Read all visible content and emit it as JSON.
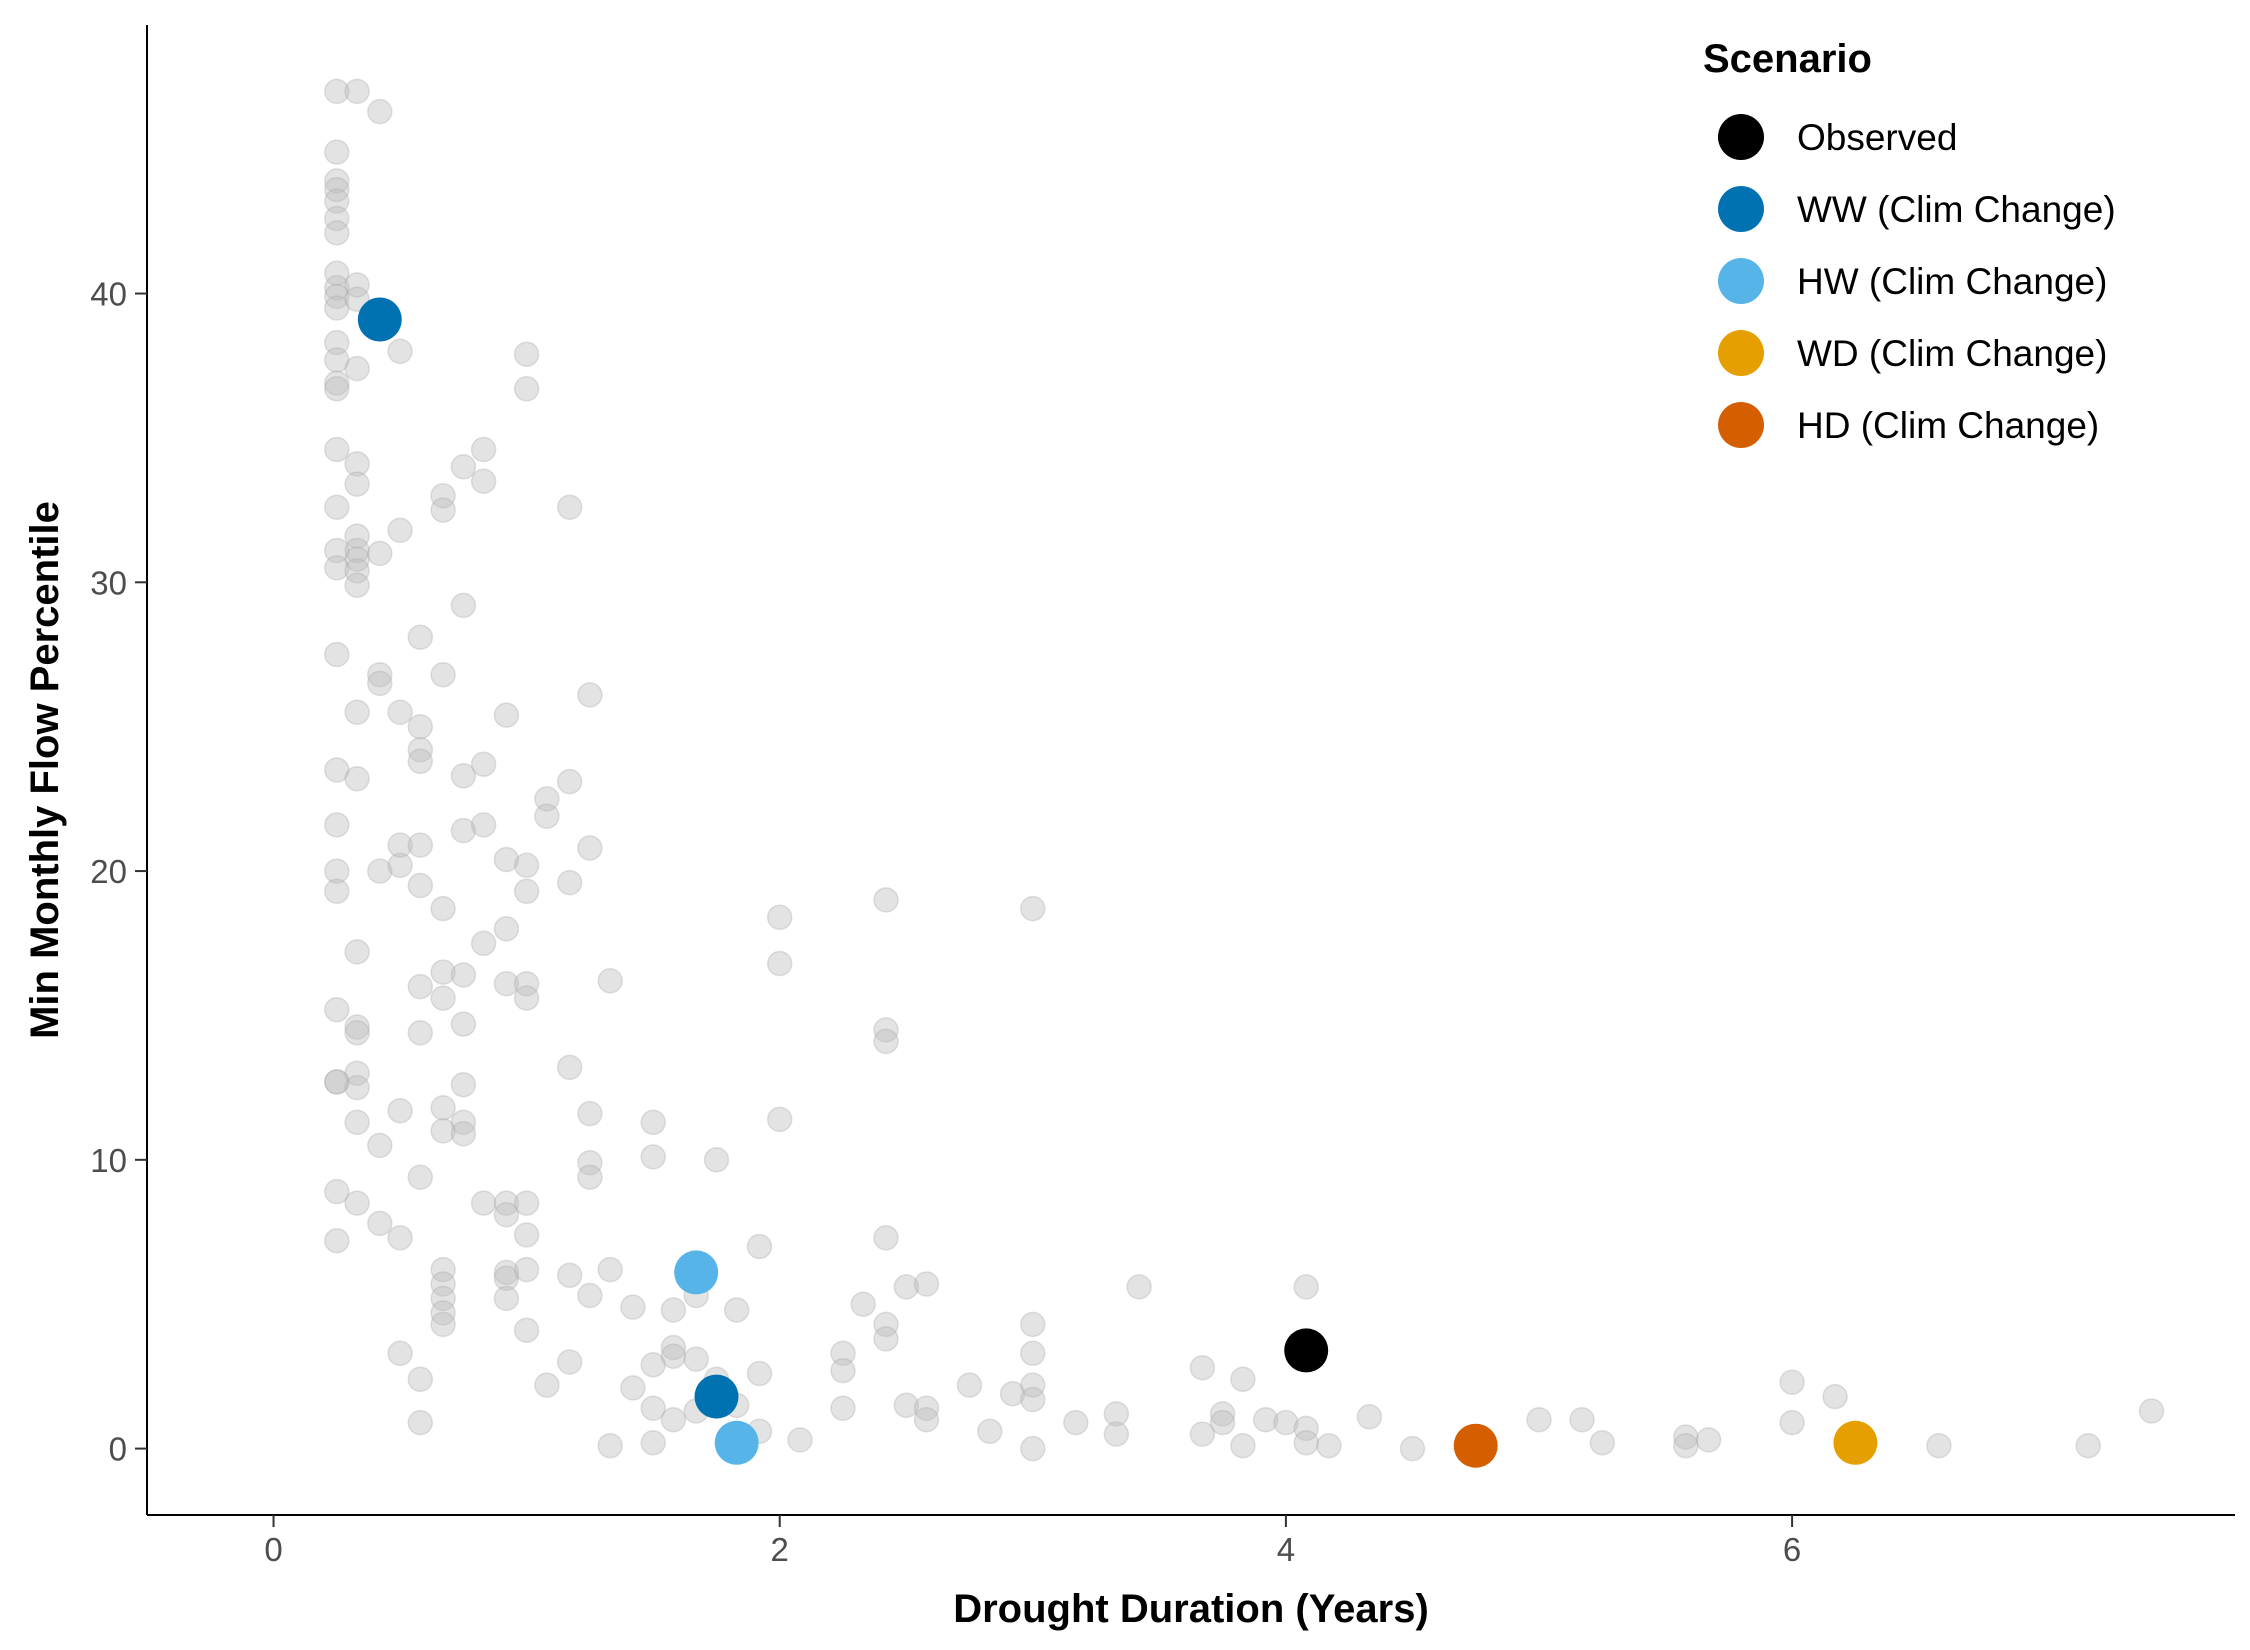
{
  "chart_data": {
    "type": "scatter",
    "xlabel": "Drought Duration (Years)",
    "ylabel": "Min Monthly Flow Percentile",
    "xlim": [
      -0.5,
      7.75
    ],
    "ylim": [
      -2.3,
      49.3
    ],
    "x_ticks": [
      0,
      2,
      4,
      6
    ],
    "y_ticks": [
      0,
      10,
      20,
      30,
      40
    ],
    "grid": false,
    "legend": {
      "title": "Scenario",
      "placement": "top-right",
      "entries": [
        {
          "label": "Observed",
          "color": "#000000"
        },
        {
          "label": "WW (Clim Change)",
          "color": "#0072B2"
        },
        {
          "label": "HW (Clim Change)",
          "color": "#56B4E9"
        },
        {
          "label": "WD (Clim Change)",
          "color": "#E69F00"
        },
        {
          "label": "HD (Clim Change)",
          "color": "#D55E00"
        }
      ]
    },
    "background_color": "#bdbdbd",
    "background_points": [
      [
        0.25,
        47.0
      ],
      [
        0.33,
        47.0
      ],
      [
        0.42,
        46.3
      ],
      [
        0.25,
        44.9
      ],
      [
        0.25,
        43.9
      ],
      [
        0.25,
        43.6
      ],
      [
        0.25,
        43.2
      ],
      [
        0.25,
        42.6
      ],
      [
        0.25,
        42.1
      ],
      [
        0.25,
        40.7
      ],
      [
        0.25,
        40.2
      ],
      [
        0.25,
        39.9
      ],
      [
        0.25,
        39.5
      ],
      [
        0.33,
        40.3
      ],
      [
        0.33,
        39.8
      ],
      [
        0.25,
        38.3
      ],
      [
        0.25,
        37.7
      ],
      [
        0.25,
        36.9
      ],
      [
        0.25,
        36.7
      ],
      [
        0.33,
        37.4
      ],
      [
        0.5,
        38.0
      ],
      [
        0.25,
        34.6
      ],
      [
        0.33,
        34.1
      ],
      [
        0.33,
        33.4
      ],
      [
        0.25,
        32.6
      ],
      [
        0.33,
        31.6
      ],
      [
        0.33,
        31.1
      ],
      [
        0.33,
        30.8
      ],
      [
        0.42,
        31.0
      ],
      [
        0.25,
        31.1
      ],
      [
        0.25,
        30.5
      ],
      [
        0.33,
        30.4
      ],
      [
        0.33,
        29.9
      ],
      [
        0.5,
        31.8
      ],
      [
        0.25,
        27.5
      ],
      [
        0.42,
        26.8
      ],
      [
        0.42,
        26.5
      ],
      [
        0.33,
        25.5
      ],
      [
        0.5,
        25.5
      ],
      [
        0.25,
        23.5
      ],
      [
        0.33,
        23.2
      ],
      [
        0.25,
        21.6
      ],
      [
        0.25,
        20.0
      ],
      [
        0.25,
        19.3
      ],
      [
        0.42,
        20.0
      ],
      [
        0.5,
        20.2
      ],
      [
        0.5,
        20.9
      ],
      [
        0.33,
        17.2
      ],
      [
        0.25,
        15.2
      ],
      [
        0.33,
        14.6
      ],
      [
        0.33,
        14.4
      ],
      [
        0.25,
        12.7
      ],
      [
        0.25,
        12.7
      ],
      [
        0.33,
        13.0
      ],
      [
        0.33,
        12.5
      ],
      [
        0.33,
        11.3
      ],
      [
        0.42,
        10.5
      ],
      [
        0.5,
        11.7
      ],
      [
        0.25,
        8.9
      ],
      [
        0.33,
        8.5
      ],
      [
        0.42,
        7.8
      ],
      [
        0.25,
        7.2
      ],
      [
        0.5,
        7.3
      ],
      [
        0.5,
        3.3
      ],
      [
        0.58,
        28.1
      ],
      [
        0.58,
        25.0
      ],
      [
        0.58,
        24.2
      ],
      [
        0.58,
        23.8
      ],
      [
        0.58,
        20.9
      ],
      [
        0.58,
        19.5
      ],
      [
        0.58,
        16.0
      ],
      [
        0.58,
        14.4
      ],
      [
        0.58,
        9.4
      ],
      [
        0.58,
        2.4
      ],
      [
        0.58,
        0.9
      ],
      [
        0.67,
        33.0
      ],
      [
        0.67,
        32.5
      ],
      [
        0.67,
        26.8
      ],
      [
        0.67,
        18.7
      ],
      [
        0.67,
        16.5
      ],
      [
        0.67,
        15.6
      ],
      [
        0.67,
        11.8
      ],
      [
        0.67,
        11.0
      ],
      [
        0.67,
        6.2
      ],
      [
        0.67,
        5.7
      ],
      [
        0.67,
        5.2
      ],
      [
        0.67,
        4.7
      ],
      [
        0.67,
        4.3
      ],
      [
        0.75,
        34.0
      ],
      [
        0.75,
        29.2
      ],
      [
        0.75,
        23.3
      ],
      [
        0.75,
        21.4
      ],
      [
        0.75,
        16.4
      ],
      [
        0.75,
        14.7
      ],
      [
        0.75,
        12.6
      ],
      [
        0.75,
        11.3
      ],
      [
        0.75,
        10.9
      ],
      [
        0.83,
        34.6
      ],
      [
        0.83,
        33.5
      ],
      [
        0.83,
        23.7
      ],
      [
        0.83,
        21.6
      ],
      [
        0.83,
        17.5
      ],
      [
        0.83,
        8.5
      ],
      [
        0.92,
        25.4
      ],
      [
        0.92,
        20.4
      ],
      [
        0.92,
        18.0
      ],
      [
        0.92,
        16.1
      ],
      [
        0.92,
        8.5
      ],
      [
        0.92,
        8.1
      ],
      [
        0.92,
        6.1
      ],
      [
        0.92,
        5.9
      ],
      [
        0.92,
        5.2
      ],
      [
        1.0,
        37.9
      ],
      [
        1.0,
        36.7
      ],
      [
        1.0,
        20.2
      ],
      [
        1.0,
        19.3
      ],
      [
        1.0,
        16.1
      ],
      [
        1.0,
        15.6
      ],
      [
        1.0,
        8.5
      ],
      [
        1.0,
        7.4
      ],
      [
        1.0,
        6.2
      ],
      [
        1.0,
        4.1
      ],
      [
        1.08,
        22.5
      ],
      [
        1.08,
        21.9
      ],
      [
        1.08,
        2.2
      ],
      [
        1.17,
        32.6
      ],
      [
        1.17,
        23.1
      ],
      [
        1.17,
        19.6
      ],
      [
        1.17,
        13.2
      ],
      [
        1.17,
        6.0
      ],
      [
        1.17,
        3.0
      ],
      [
        1.25,
        26.1
      ],
      [
        1.25,
        20.8
      ],
      [
        1.25,
        11.6
      ],
      [
        1.25,
        9.9
      ],
      [
        1.25,
        9.4
      ],
      [
        1.25,
        5.3
      ],
      [
        1.33,
        16.2
      ],
      [
        1.33,
        6.2
      ],
      [
        1.33,
        0.1
      ],
      [
        1.42,
        4.9
      ],
      [
        1.42,
        2.1
      ],
      [
        1.5,
        11.3
      ],
      [
        1.5,
        10.1
      ],
      [
        1.5,
        2.9
      ],
      [
        1.5,
        1.4
      ],
      [
        1.5,
        0.2
      ],
      [
        1.58,
        4.8
      ],
      [
        1.58,
        3.5
      ],
      [
        1.58,
        3.2
      ],
      [
        1.58,
        1.0
      ],
      [
        1.67,
        5.3
      ],
      [
        1.67,
        3.1
      ],
      [
        1.67,
        1.3
      ],
      [
        1.75,
        10.0
      ],
      [
        1.75,
        2.4
      ],
      [
        1.75,
        1.5
      ],
      [
        1.83,
        4.8
      ],
      [
        1.83,
        1.5
      ],
      [
        1.92,
        7.0
      ],
      [
        1.92,
        2.6
      ],
      [
        1.92,
        0.6
      ],
      [
        2.0,
        18.4
      ],
      [
        2.0,
        16.8
      ],
      [
        2.0,
        11.4
      ],
      [
        2.08,
        0.3
      ],
      [
        2.25,
        3.3
      ],
      [
        2.25,
        2.7
      ],
      [
        2.25,
        1.4
      ],
      [
        2.33,
        5.0
      ],
      [
        2.42,
        19.0
      ],
      [
        2.42,
        14.5
      ],
      [
        2.42,
        14.1
      ],
      [
        2.42,
        7.3
      ],
      [
        2.42,
        4.3
      ],
      [
        2.42,
        3.8
      ],
      [
        2.5,
        5.6
      ],
      [
        2.5,
        1.5
      ],
      [
        2.58,
        5.7
      ],
      [
        2.58,
        1.4
      ],
      [
        2.58,
        1.0
      ],
      [
        2.75,
        2.2
      ],
      [
        2.83,
        0.6
      ],
      [
        2.92,
        1.9
      ],
      [
        3.0,
        18.7
      ],
      [
        3.0,
        4.3
      ],
      [
        3.0,
        3.3
      ],
      [
        3.0,
        2.2
      ],
      [
        3.0,
        1.7
      ],
      [
        3.0,
        0.0
      ],
      [
        3.17,
        0.9
      ],
      [
        3.33,
        1.2
      ],
      [
        3.33,
        0.5
      ],
      [
        3.42,
        5.6
      ],
      [
        3.67,
        2.8
      ],
      [
        3.67,
        0.5
      ],
      [
        3.75,
        1.2
      ],
      [
        3.75,
        0.9
      ],
      [
        3.83,
        2.4
      ],
      [
        3.83,
        0.1
      ],
      [
        3.92,
        1.0
      ],
      [
        4.0,
        0.9
      ],
      [
        4.08,
        5.6
      ],
      [
        4.08,
        0.7
      ],
      [
        4.08,
        0.2
      ],
      [
        4.17,
        0.1
      ],
      [
        4.33,
        1.1
      ],
      [
        4.5,
        0.0
      ],
      [
        5.0,
        1.0
      ],
      [
        5.17,
        1.0
      ],
      [
        5.25,
        0.2
      ],
      [
        5.58,
        0.4
      ],
      [
        5.58,
        0.1
      ],
      [
        5.67,
        0.3
      ],
      [
        6.0,
        2.3
      ],
      [
        6.0,
        0.9
      ],
      [
        6.17,
        1.8
      ],
      [
        6.58,
        0.1
      ],
      [
        7.17,
        0.1
      ],
      [
        7.42,
        1.3
      ]
    ],
    "series": [
      {
        "name": "Observed",
        "color": "#000000",
        "x": [
          4.08
        ],
        "y": [
          3.4
        ]
      },
      {
        "name": "WW (Clim Change)",
        "color": "#0072B2",
        "x": [
          0.42,
          1.75
        ],
        "y": [
          39.1,
          1.8
        ]
      },
      {
        "name": "HW (Clim Change)",
        "color": "#56B4E9",
        "x": [
          1.67,
          1.83
        ],
        "y": [
          6.1,
          0.2
        ]
      },
      {
        "name": "WD (Clim Change)",
        "color": "#E69F00",
        "x": [
          6.25
        ],
        "y": [
          0.2
        ]
      },
      {
        "name": "HD (Clim Change)",
        "color": "#D55E00",
        "x": [
          4.75
        ],
        "y": [
          0.1
        ]
      }
    ]
  }
}
